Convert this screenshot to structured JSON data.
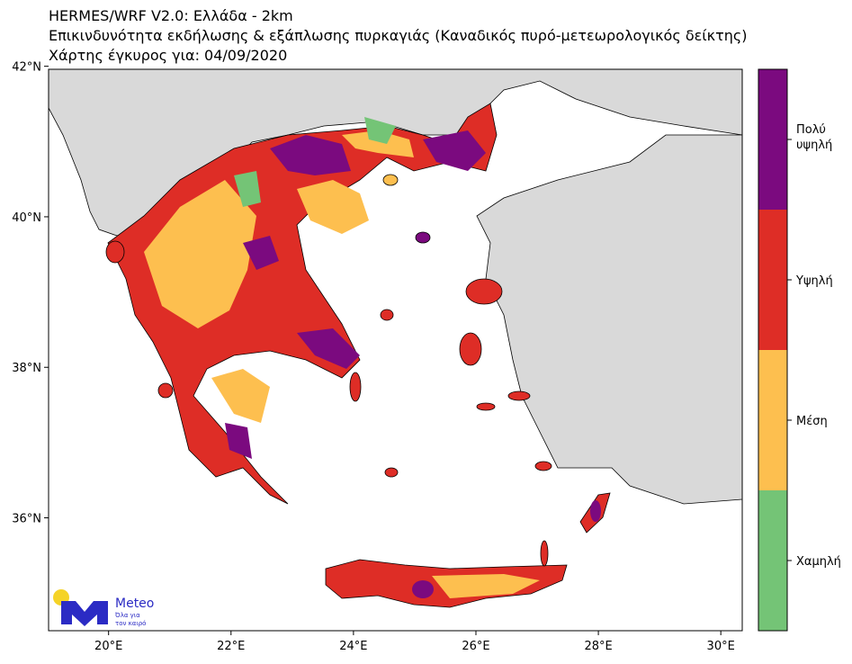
{
  "header": {
    "title_lines": [
      "HERMES/WRF V2.0: Ελλάδα - 2km",
      "Επικινδυνότητα εκδήλωσης & εξάπλωσης πυρκαγιάς (Καναδικός πυρό-μετεωρολογικός δείκτης)",
      "Χάρτης έγκυρος για: 04/09/2020"
    ]
  },
  "map": {
    "xlim": [
      19.02,
      30.35
    ],
    "ylim": [
      34.5,
      41.96
    ],
    "xticks": [
      {
        "value": 20,
        "label": "20°E"
      },
      {
        "value": 22,
        "label": "22°E"
      },
      {
        "value": 24,
        "label": "24°E"
      },
      {
        "value": 26,
        "label": "26°E"
      },
      {
        "value": 28,
        "label": "28°E"
      },
      {
        "value": 30,
        "label": "30°E"
      }
    ],
    "yticks": [
      {
        "value": 36,
        "label": "36°N"
      },
      {
        "value": 38,
        "label": "38°N"
      },
      {
        "value": 40,
        "label": "40°N"
      },
      {
        "value": 42,
        "label": "42°N"
      }
    ]
  },
  "legend": {
    "levels": [
      {
        "label": "Χαμηλή",
        "color": "#74c476"
      },
      {
        "label": "Μέση",
        "color": "#fdbf4f"
      },
      {
        "label": "Υψηλή",
        "color": "#de2d26"
      },
      {
        "label": "Πολύ υψηλή",
        "color": "#7b0a7f"
      }
    ]
  },
  "logo": {
    "name": "Meteo",
    "tagline": [
      "Όλα για",
      "τον καιρό"
    ]
  }
}
